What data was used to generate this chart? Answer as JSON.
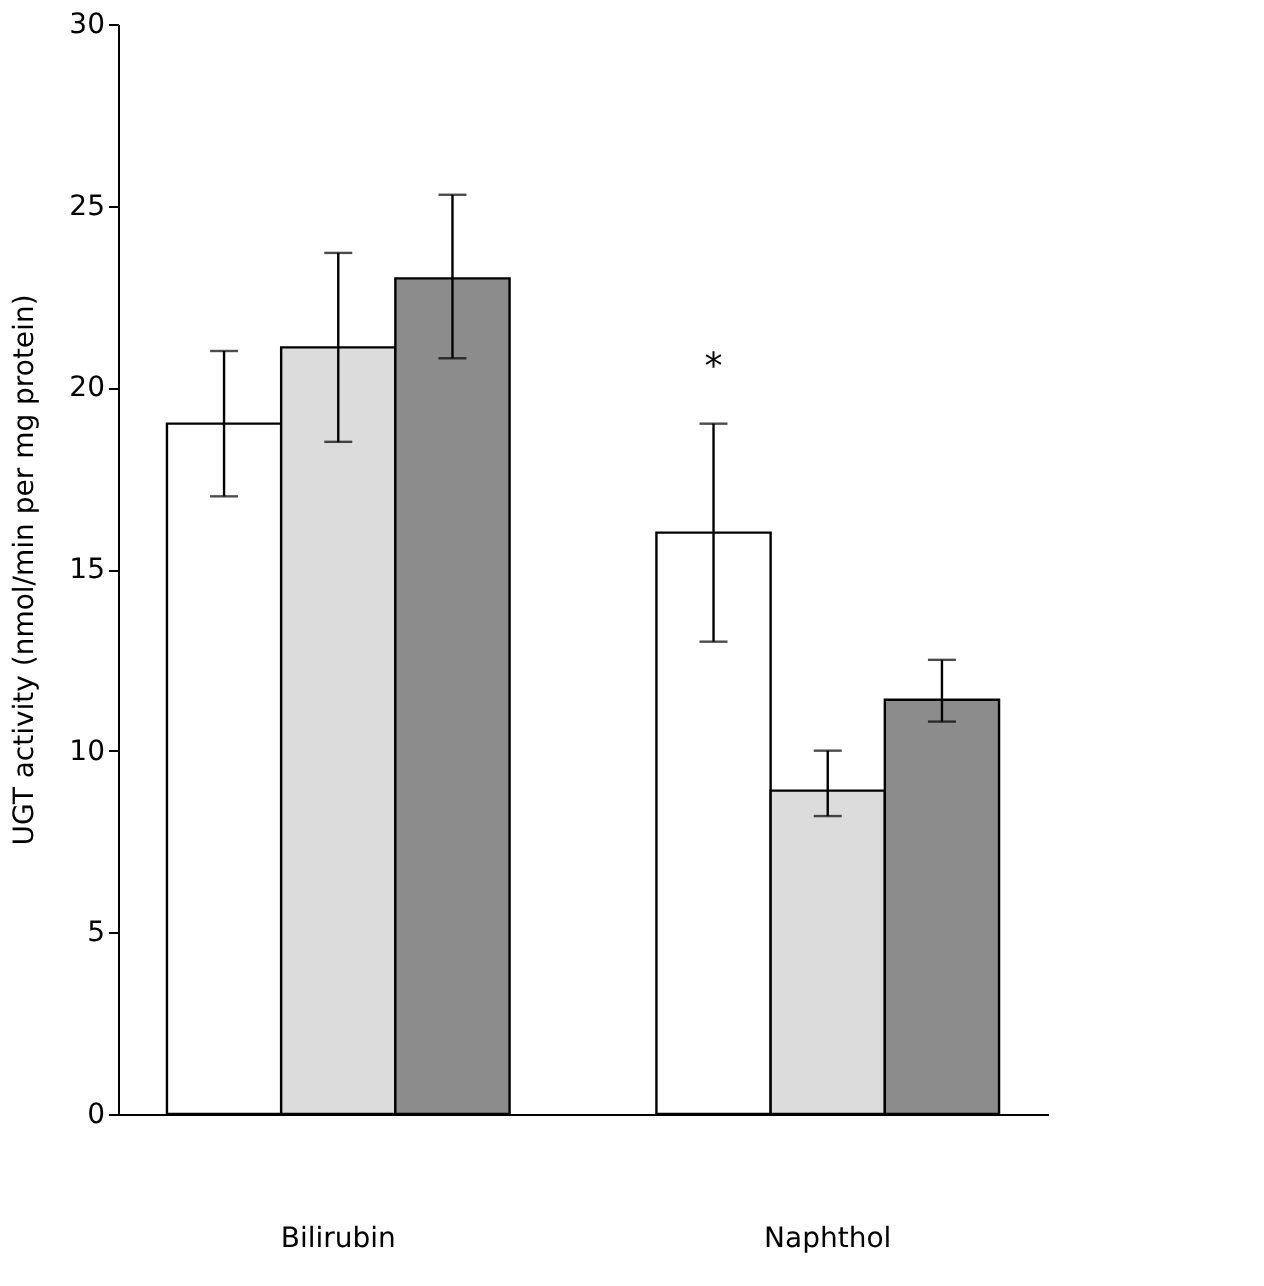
{
  "chart_data": {
    "type": "bar",
    "ylabel": "UGT activity (nmol/min per mg protein)",
    "categories": [
      "Bilirubin",
      "Naphthol"
    ],
    "series": [
      {
        "color": "#ffffff",
        "values": [
          19,
          16
        ],
        "errors": [
          [
            17,
            21
          ],
          [
            13,
            19
          ]
        ]
      },
      {
        "color": "#dcdcdc",
        "values": [
          21.1,
          8.9
        ],
        "errors": [
          [
            18.5,
            23.7
          ],
          [
            8.2,
            10
          ]
        ]
      },
      {
        "color": "#8c8c8c",
        "values": [
          23,
          11.4
        ],
        "errors": [
          [
            20.8,
            25.3
          ],
          [
            10.8,
            12.5
          ]
        ]
      }
    ],
    "ylim": [
      0,
      30
    ],
    "yticks": [
      0,
      5,
      10,
      15,
      20,
      25,
      30
    ],
    "grid": false,
    "legend": false,
    "annotations": [
      "*"
    ]
  }
}
